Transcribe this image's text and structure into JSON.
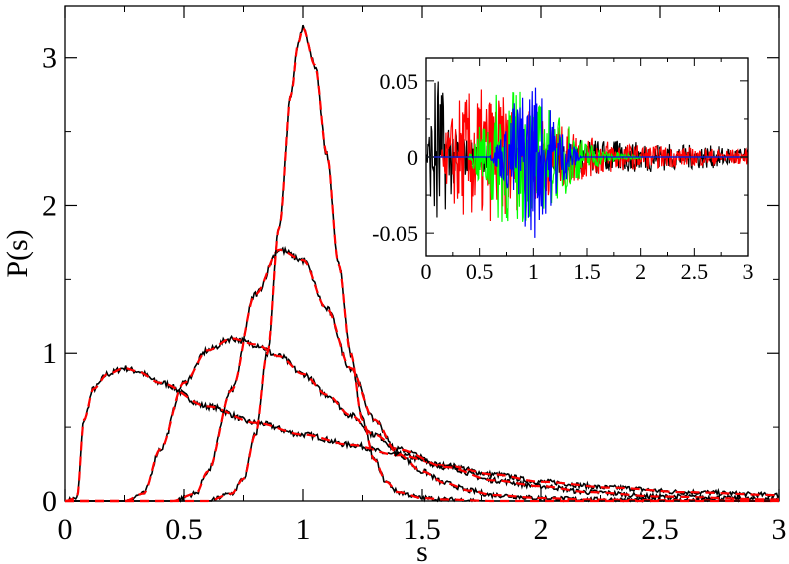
{
  "chart_data": [
    {
      "type": "line",
      "title": "",
      "xlabel": "s",
      "ylabel": "P(s)",
      "xlim": [
        0,
        3
      ],
      "ylim": [
        0,
        3.35
      ],
      "xticks": [
        0,
        0.5,
        1,
        1.5,
        2,
        2.5,
        3
      ],
      "xtick_labels": [
        "0",
        "0.5",
        "1",
        "1.5",
        "2",
        "2.5",
        "3"
      ],
      "yticks": [
        0,
        1,
        2,
        3
      ],
      "ytick_labels": [
        "0",
        "1",
        "2",
        "3"
      ],
      "grid": false,
      "legend": "none",
      "series": [
        {
          "style": "solid",
          "color": "#000000",
          "x": [
            0,
            0.05,
            0.08,
            0.12,
            0.18,
            0.25,
            0.3,
            0.4,
            0.6,
            0.8,
            1.0,
            1.2,
            1.4,
            1.6,
            1.8,
            2.0,
            2.3,
            2.6,
            3.0
          ],
          "y": [
            0,
            0.02,
            0.55,
            0.76,
            0.86,
            0.9,
            0.88,
            0.8,
            0.64,
            0.53,
            0.45,
            0.38,
            0.31,
            0.24,
            0.18,
            0.13,
            0.09,
            0.06,
            0.04
          ]
        },
        {
          "style": "solid",
          "color": "#000000",
          "x": [
            0.25,
            0.33,
            0.4,
            0.5,
            0.6,
            0.7,
            0.8,
            0.9,
            1.0,
            1.1,
            1.2,
            1.3,
            1.4,
            1.6,
            1.8,
            2.0,
            2.2,
            2.5,
            3.0
          ],
          "y": [
            0,
            0.05,
            0.35,
            0.8,
            1.02,
            1.1,
            1.06,
            0.98,
            0.86,
            0.72,
            0.58,
            0.45,
            0.35,
            0.23,
            0.14,
            0.1,
            0.06,
            0.03,
            0.01
          ]
        },
        {
          "style": "solid",
          "color": "#000000",
          "x": [
            0.45,
            0.55,
            0.6,
            0.7,
            0.8,
            0.9,
            1.0,
            1.1,
            1.2,
            1.3,
            1.4,
            1.5,
            1.6,
            1.7,
            1.8,
            2.0,
            2.2,
            2.5,
            3.0
          ],
          "y": [
            0,
            0.05,
            0.2,
            0.75,
            1.4,
            1.7,
            1.63,
            1.3,
            0.9,
            0.55,
            0.32,
            0.2,
            0.12,
            0.07,
            0.04,
            0.02,
            0.01,
            0.005,
            0
          ]
        },
        {
          "style": "solid",
          "color": "#000000",
          "x": [
            0.6,
            0.7,
            0.75,
            0.8,
            0.85,
            0.9,
            0.95,
            0.98,
            1.0,
            1.05,
            1.1,
            1.15,
            1.2,
            1.25,
            1.3,
            1.35,
            1.4,
            1.5,
            1.6,
            1.8,
            3.0
          ],
          "y": [
            0,
            0.05,
            0.15,
            0.45,
            1.0,
            1.85,
            2.75,
            3.1,
            3.2,
            2.95,
            2.35,
            1.6,
            1.0,
            0.55,
            0.28,
            0.13,
            0.06,
            0.02,
            0.01,
            0,
            0
          ]
        }
      ],
      "overlay_style": {
        "color": "#ff0000",
        "dash": "dashed"
      }
    },
    {
      "type": "line",
      "title": "",
      "xlabel": "",
      "ylabel": "",
      "xlim": [
        0,
        3
      ],
      "ylim": [
        -0.065,
        0.065
      ],
      "xticks": [
        0,
        0.5,
        1,
        1.5,
        2,
        2.5,
        3
      ],
      "xtick_labels": [
        "0",
        "0.5",
        "1",
        "1.5",
        "2",
        "2.5",
        "3"
      ],
      "yticks": [
        -0.05,
        0,
        0.05
      ],
      "ytick_labels": [
        "-0.05",
        "0",
        "0.05"
      ],
      "grid": false,
      "legend": "none",
      "series_colors": [
        "#000000",
        "#ff0000",
        "#00ff00",
        "#0000ff"
      ],
      "series_envelopes": [
        {
          "color": "#000000",
          "x": [
            0,
            0.05,
            0.1,
            0.15,
            0.2,
            0.3,
            0.5,
            1.0,
            1.5,
            2.0,
            2.5,
            3.0
          ],
          "amplitude": [
            0.005,
            0.03,
            0.065,
            0.045,
            0.03,
            0.015,
            0.01,
            0.01,
            0.012,
            0.01,
            0.008,
            0.006
          ]
        },
        {
          "color": "#ff0000",
          "x": [
            0.15,
            0.2,
            0.3,
            0.5,
            0.7,
            1.0,
            1.3,
            1.6,
            2.0,
            2.5,
            3.0
          ],
          "amplitude": [
            0.005,
            0.02,
            0.04,
            0.045,
            0.04,
            0.03,
            0.02,
            0.012,
            0.008,
            0.006,
            0.005
          ]
        },
        {
          "color": "#00ff00",
          "x": [
            0.4,
            0.5,
            0.7,
            0.9,
            1.1,
            1.3,
            1.5,
            1.7,
            2.0
          ],
          "amplitude": [
            0.002,
            0.02,
            0.045,
            0.045,
            0.035,
            0.025,
            0.01,
            0.004,
            0.001
          ]
        },
        {
          "color": "#0000ff",
          "x": [
            0.6,
            0.7,
            0.85,
            0.95,
            1.0,
            1.1,
            1.2,
            1.3,
            1.45
          ],
          "amplitude": [
            0.002,
            0.015,
            0.04,
            0.05,
            0.055,
            0.04,
            0.03,
            0.015,
            0.002
          ]
        }
      ]
    }
  ]
}
